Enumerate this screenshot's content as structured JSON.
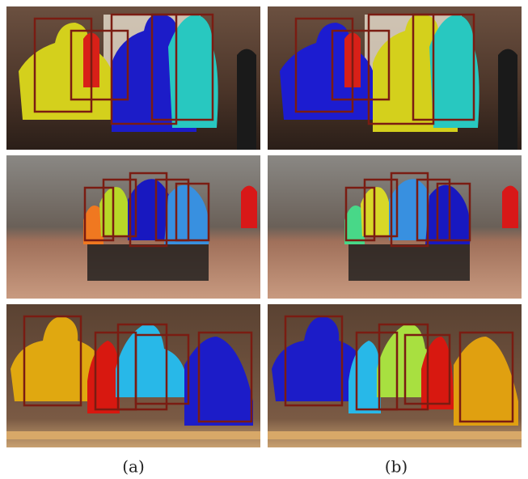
{
  "figure": {
    "captions": [
      "(a)",
      "(b)"
    ]
  }
}
